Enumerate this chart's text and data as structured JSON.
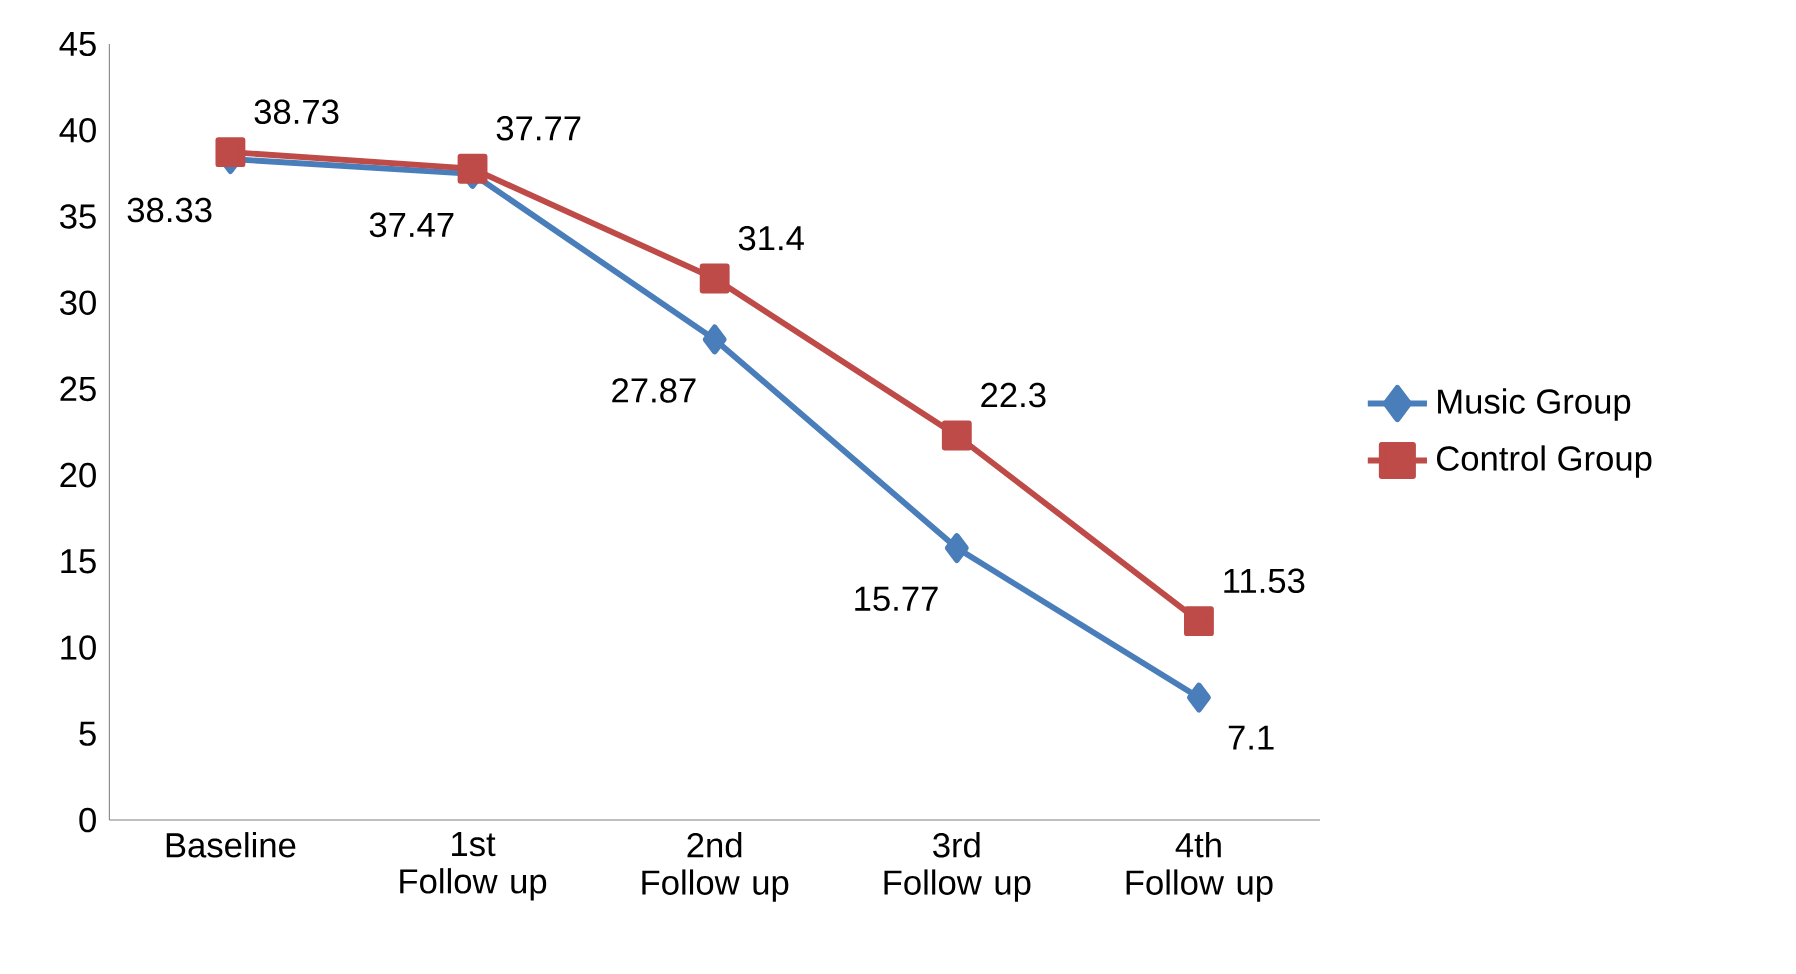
{
  "chart_data": {
    "type": "line",
    "categories": [
      "Baseline",
      "1st Follow up",
      "2nd Follow up",
      "3rd Follow up",
      "4th Follow up"
    ],
    "series": [
      {
        "name": "Music Group",
        "color": "#4a7ebb",
        "marker": "diamond",
        "values": [
          38.33,
          37.47,
          27.87,
          15.77,
          7.1
        ]
      },
      {
        "name": "Control Group",
        "color": "#be4b48",
        "marker": "square",
        "values": [
          38.73,
          37.77,
          31.4,
          22.3,
          11.53
        ]
      }
    ],
    "ylim": [
      0,
      45
    ],
    "yticks": [
      0,
      5,
      10,
      15,
      20,
      25,
      30,
      35,
      40,
      45
    ],
    "grid": false,
    "legend": "right",
    "data_labels": true,
    "line_style": "solid"
  }
}
